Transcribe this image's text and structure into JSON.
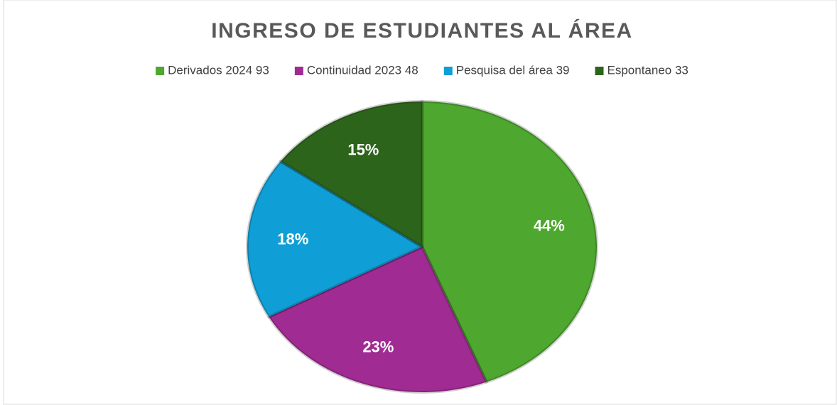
{
  "chart_data": {
    "type": "pie",
    "title": "INGRESO DE ESTUDIANTES AL ÁREA",
    "categories": [
      "Derivados 2024 93",
      "Continuidad 2023 48",
      "Pesquisa del área 39",
      "Espontaneo 33"
    ],
    "values": [
      44,
      23,
      18,
      15
    ],
    "value_labels": [
      "44%",
      "23%",
      "18%",
      "15%"
    ],
    "colors": [
      "#4ea72e",
      "#a02b93",
      "#0f9ed5",
      "#2d641c"
    ],
    "legend": "top"
  }
}
